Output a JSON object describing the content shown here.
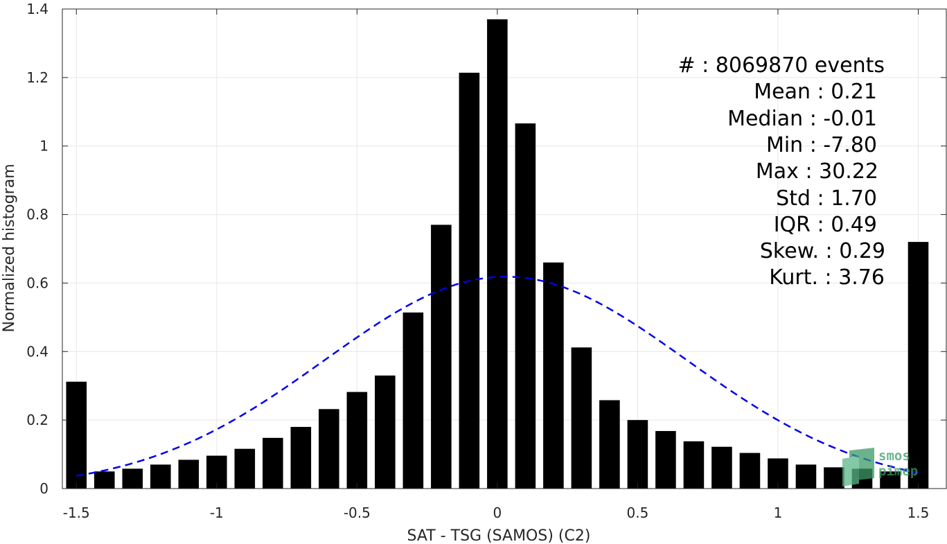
{
  "chart_data": {
    "type": "bar",
    "xlabel": "SAT - TSG (SAMOS) (C2)",
    "ylabel": "Normalized histogram",
    "xlim": [
      -1.55,
      1.6
    ],
    "ylim": [
      0,
      1.4
    ],
    "xticks": [
      -1.5,
      -1,
      -0.5,
      0,
      0.5,
      1,
      1.5
    ],
    "xtick_labels": [
      "-1.5",
      "-1",
      "-0.5",
      "0",
      "0.5",
      "1",
      "1.5"
    ],
    "yticks": [
      0,
      0.2,
      0.4,
      0.6,
      0.8,
      1,
      1.2,
      1.4
    ],
    "ytick_labels": [
      "0",
      "0.2",
      "0.4",
      "0.6",
      "0.8",
      "1",
      "1.2",
      "1.4"
    ],
    "grid": true,
    "series": [
      {
        "style": "bar",
        "color": "#000000",
        "x": [
          -1.5,
          -1.4,
          -1.3,
          -1.2,
          -1.1,
          -1.0,
          -0.9,
          -0.8,
          -0.7,
          -0.6,
          -0.5,
          -0.4,
          -0.3,
          -0.2,
          -0.1,
          0.0,
          0.1,
          0.2,
          0.3,
          0.4,
          0.5,
          0.6,
          0.7,
          0.8,
          0.9,
          1.0,
          1.1,
          1.2,
          1.3,
          1.4,
          1.5
        ],
        "values": [
          0.312,
          0.05,
          0.058,
          0.07,
          0.084,
          0.096,
          0.116,
          0.148,
          0.18,
          0.232,
          0.282,
          0.33,
          0.514,
          0.77,
          1.214,
          1.37,
          1.066,
          0.66,
          0.412,
          0.258,
          0.2,
          0.168,
          0.138,
          0.122,
          0.104,
          0.088,
          0.07,
          0.062,
          0.058,
          0.05,
          0.72
        ]
      },
      {
        "style": "dashed-line",
        "color": "#0000ee",
        "mean": 0.03,
        "std": 0.645,
        "x_range": [
          -1.5,
          1.5
        ]
      }
    ],
    "stats_lines": [
      "#  : 8069870 events",
      "Mean : 0.21",
      "Median : -0.01",
      "Min : -7.80",
      "Max : 30.22",
      "Std : 1.70",
      "IQR : 0.49",
      "Skew. : 0.29",
      "Kurt. : 3.76"
    ]
  },
  "watermark": {
    "line1": "smos",
    "line2": "pimep",
    "color": "#3c9a68"
  }
}
